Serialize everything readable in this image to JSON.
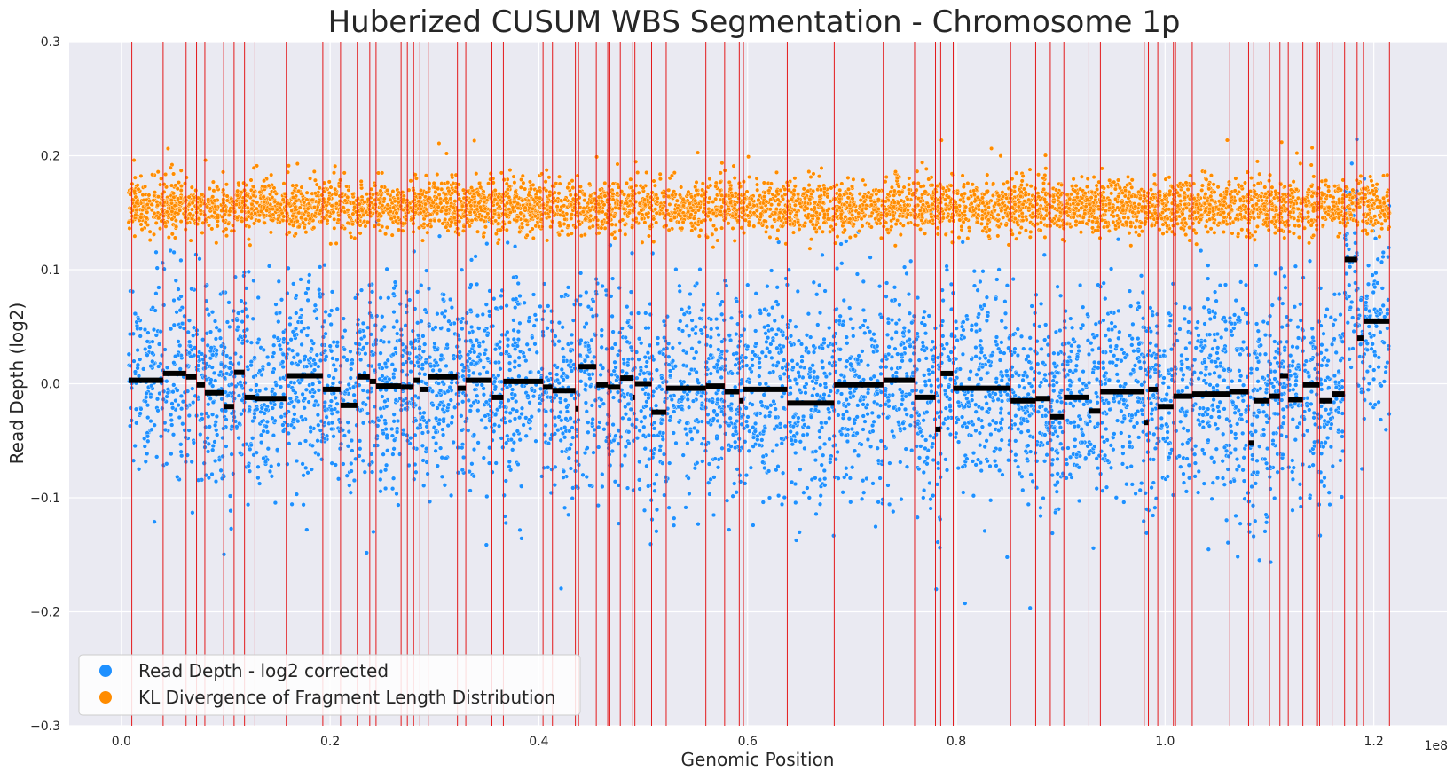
{
  "chart_data": {
    "type": "scatter",
    "title": "Huberized CUSUM WBS Segmentation - Chromosome 1p",
    "xlabel": "Genomic Position",
    "ylabel": "Read Depth (log2)",
    "x_scale_label": "1e8",
    "xlim": [
      -0.05,
      1.27
    ],
    "ylim": [
      -0.3,
      0.3
    ],
    "x_ticks": [
      0.0,
      0.2,
      0.4,
      0.6,
      0.8,
      1.0,
      1.2
    ],
    "x_tick_labels": [
      "0.0",
      "0.2",
      "0.4",
      "0.6",
      "0.8",
      "1.0",
      "1.2"
    ],
    "y_ticks": [
      -0.3,
      -0.2,
      -0.1,
      0.0,
      0.1,
      0.2,
      0.3
    ],
    "y_tick_labels": [
      "−0.3",
      "−0.2",
      "−0.1",
      "0.0",
      "0.1",
      "0.2",
      "0.3"
    ],
    "grid": true,
    "legend_position": "lower-left",
    "series": [
      {
        "name": "Read Depth - log2 corrected",
        "color": "#1e90ff",
        "x_range": [
          0.007,
          1.215
        ],
        "center": 0.0,
        "spread": 0.045,
        "approx_points": 5200
      },
      {
        "name": "KL Divergence of Fragment Length Distribution",
        "color": "#ff8c00",
        "x_range": [
          0.007,
          1.215
        ],
        "center": 0.155,
        "spread": 0.011,
        "approx_points": 5200
      }
    ],
    "segments": {
      "color": "#000000",
      "items": [
        {
          "x0": 0.007,
          "x1": 0.04,
          "y": 0.003
        },
        {
          "x0": 0.04,
          "x1": 0.062,
          "y": 0.009
        },
        {
          "x0": 0.062,
          "x1": 0.072,
          "y": 0.006
        },
        {
          "x0": 0.072,
          "x1": 0.08,
          "y": -0.001
        },
        {
          "x0": 0.08,
          "x1": 0.098,
          "y": -0.008
        },
        {
          "x0": 0.098,
          "x1": 0.108,
          "y": -0.02
        },
        {
          "x0": 0.108,
          "x1": 0.118,
          "y": 0.01
        },
        {
          "x0": 0.118,
          "x1": 0.128,
          "y": -0.012
        },
        {
          "x0": 0.128,
          "x1": 0.158,
          "y": -0.013
        },
        {
          "x0": 0.158,
          "x1": 0.193,
          "y": 0.007
        },
        {
          "x0": 0.193,
          "x1": 0.21,
          "y": -0.005
        },
        {
          "x0": 0.21,
          "x1": 0.226,
          "y": -0.019
        },
        {
          "x0": 0.226,
          "x1": 0.238,
          "y": 0.006
        },
        {
          "x0": 0.238,
          "x1": 0.244,
          "y": 0.002
        },
        {
          "x0": 0.244,
          "x1": 0.268,
          "y": -0.002
        },
        {
          "x0": 0.268,
          "x1": 0.28,
          "y": -0.003
        },
        {
          "x0": 0.28,
          "x1": 0.286,
          "y": 0.003
        },
        {
          "x0": 0.286,
          "x1": 0.294,
          "y": -0.005
        },
        {
          "x0": 0.294,
          "x1": 0.322,
          "y": 0.006
        },
        {
          "x0": 0.322,
          "x1": 0.33,
          "y": -0.004
        },
        {
          "x0": 0.33,
          "x1": 0.355,
          "y": 0.003
        },
        {
          "x0": 0.355,
          "x1": 0.366,
          "y": -0.012
        },
        {
          "x0": 0.366,
          "x1": 0.404,
          "y": 0.002
        },
        {
          "x0": 0.404,
          "x1": 0.413,
          "y": -0.003
        },
        {
          "x0": 0.413,
          "x1": 0.435,
          "y": -0.006
        },
        {
          "x0": 0.435,
          "x1": 0.438,
          "y": -0.022
        },
        {
          "x0": 0.438,
          "x1": 0.455,
          "y": 0.015
        },
        {
          "x0": 0.455,
          "x1": 0.466,
          "y": -0.001
        },
        {
          "x0": 0.466,
          "x1": 0.478,
          "y": -0.003
        },
        {
          "x0": 0.478,
          "x1": 0.49,
          "y": 0.005
        },
        {
          "x0": 0.49,
          "x1": 0.492,
          "y": -0.012
        },
        {
          "x0": 0.492,
          "x1": 0.508,
          "y": 0.0
        },
        {
          "x0": 0.508,
          "x1": 0.522,
          "y": -0.025
        },
        {
          "x0": 0.522,
          "x1": 0.56,
          "y": -0.004
        },
        {
          "x0": 0.56,
          "x1": 0.578,
          "y": -0.002
        },
        {
          "x0": 0.578,
          "x1": 0.592,
          "y": -0.007
        },
        {
          "x0": 0.592,
          "x1": 0.596,
          "y": -0.015
        },
        {
          "x0": 0.596,
          "x1": 0.638,
          "y": -0.005
        },
        {
          "x0": 0.638,
          "x1": 0.683,
          "y": -0.017
        },
        {
          "x0": 0.683,
          "x1": 0.73,
          "y": -0.001
        },
        {
          "x0": 0.73,
          "x1": 0.76,
          "y": 0.003
        },
        {
          "x0": 0.76,
          "x1": 0.78,
          "y": -0.012
        },
        {
          "x0": 0.78,
          "x1": 0.785,
          "y": -0.04
        },
        {
          "x0": 0.785,
          "x1": 0.797,
          "y": 0.009
        },
        {
          "x0": 0.797,
          "x1": 0.852,
          "y": -0.004
        },
        {
          "x0": 0.852,
          "x1": 0.876,
          "y": -0.015
        },
        {
          "x0": 0.876,
          "x1": 0.89,
          "y": -0.013
        },
        {
          "x0": 0.89,
          "x1": 0.903,
          "y": -0.029
        },
        {
          "x0": 0.903,
          "x1": 0.927,
          "y": -0.012
        },
        {
          "x0": 0.927,
          "x1": 0.938,
          "y": -0.024
        },
        {
          "x0": 0.938,
          "x1": 0.98,
          "y": -0.007
        },
        {
          "x0": 0.98,
          "x1": 0.984,
          "y": -0.034
        },
        {
          "x0": 0.984,
          "x1": 0.993,
          "y": -0.005
        },
        {
          "x0": 0.993,
          "x1": 1.008,
          "y": -0.02
        },
        {
          "x0": 1.008,
          "x1": 1.026,
          "y": -0.011
        },
        {
          "x0": 1.026,
          "x1": 1.062,
          "y": -0.009
        },
        {
          "x0": 1.062,
          "x1": 1.08,
          "y": -0.007
        },
        {
          "x0": 1.08,
          "x1": 1.085,
          "y": -0.052
        },
        {
          "x0": 1.085,
          "x1": 1.1,
          "y": -0.015
        },
        {
          "x0": 1.1,
          "x1": 1.11,
          "y": -0.011
        },
        {
          "x0": 1.11,
          "x1": 1.118,
          "y": 0.007
        },
        {
          "x0": 1.118,
          "x1": 1.132,
          "y": -0.014
        },
        {
          "x0": 1.132,
          "x1": 1.148,
          "y": -0.001
        },
        {
          "x0": 1.148,
          "x1": 1.16,
          "y": -0.015
        },
        {
          "x0": 1.16,
          "x1": 1.172,
          "y": -0.009
        },
        {
          "x0": 1.172,
          "x1": 1.184,
          "y": 0.109
        },
        {
          "x0": 1.184,
          "x1": 1.19,
          "y": 0.04
        },
        {
          "x0": 1.19,
          "x1": 1.215,
          "y": 0.055
        }
      ]
    },
    "changepoints": {
      "color": "#e31a1c",
      "x": [
        0.01,
        0.04,
        0.062,
        0.072,
        0.08,
        0.098,
        0.108,
        0.118,
        0.128,
        0.158,
        0.193,
        0.21,
        0.226,
        0.238,
        0.244,
        0.268,
        0.274,
        0.28,
        0.286,
        0.294,
        0.322,
        0.33,
        0.355,
        0.366,
        0.404,
        0.413,
        0.435,
        0.438,
        0.455,
        0.466,
        0.468,
        0.478,
        0.49,
        0.492,
        0.508,
        0.522,
        0.56,
        0.578,
        0.592,
        0.596,
        0.638,
        0.683,
        0.73,
        0.76,
        0.78,
        0.785,
        0.797,
        0.852,
        0.876,
        0.89,
        0.903,
        0.927,
        0.938,
        0.98,
        0.984,
        0.993,
        1.008,
        1.01,
        1.026,
        1.062,
        1.08,
        1.085,
        1.1,
        1.11,
        1.118,
        1.132,
        1.146,
        1.148,
        1.16,
        1.172,
        1.184,
        1.19,
        1.215
      ]
    }
  },
  "legend": {
    "items": [
      {
        "label": "Read Depth - log2 corrected",
        "color": "#1e90ff"
      },
      {
        "label": "KL Divergence of Fragment Length Distribution",
        "color": "#ff8c00"
      }
    ]
  },
  "colors": {
    "plot_background": "#eaeaf2",
    "grid": "#ffffff",
    "text": "#262626"
  }
}
